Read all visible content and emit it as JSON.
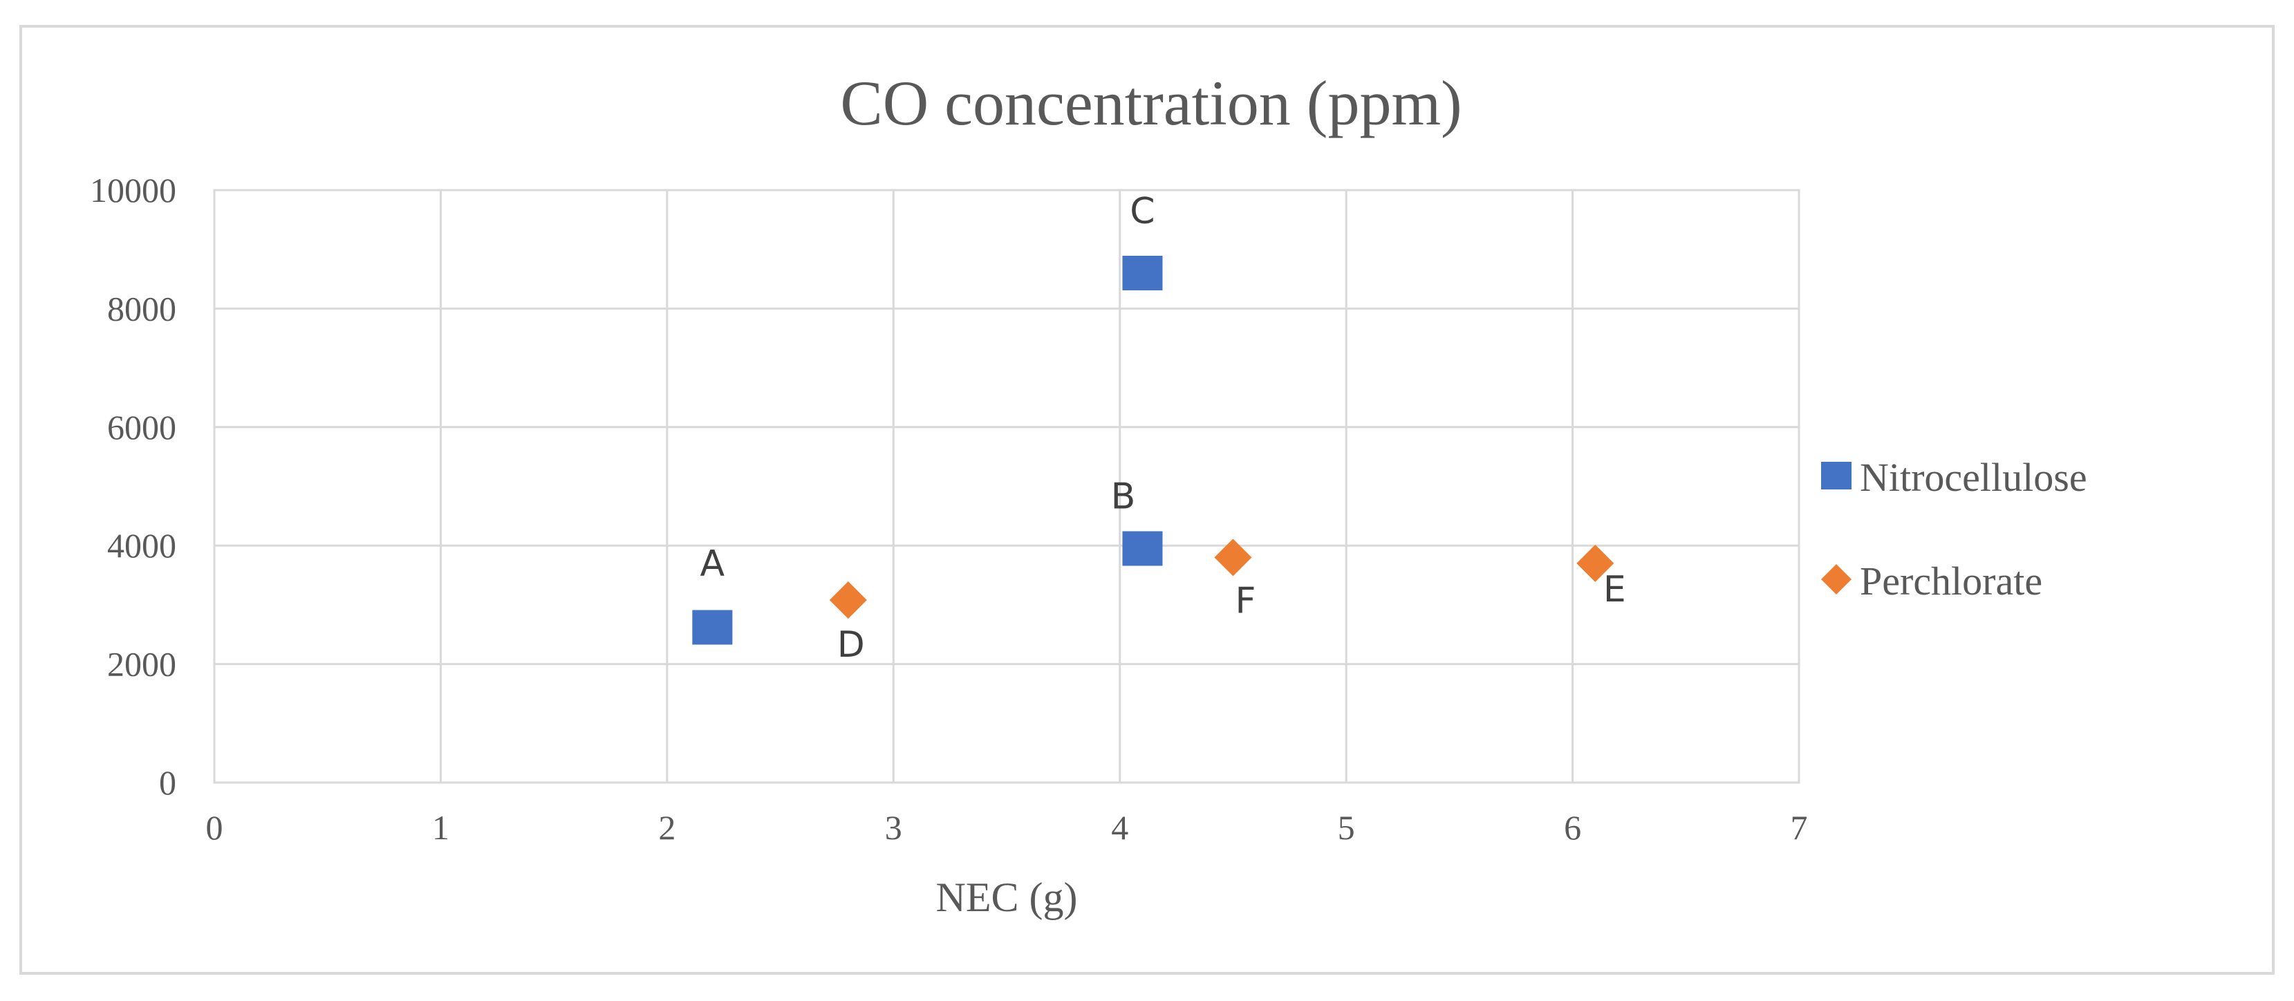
{
  "chart_data": {
    "type": "scatter",
    "title": "CO concentration (ppm)",
    "xlabel": "NEC (g)",
    "ylabel": "",
    "xlim": [
      0,
      7
    ],
    "ylim": [
      0,
      10000
    ],
    "x_ticks": [
      "0",
      "1",
      "2",
      "3",
      "4",
      "5",
      "6",
      "7"
    ],
    "y_ticks": [
      "0",
      "2000",
      "4000",
      "6000",
      "8000",
      "10000"
    ],
    "grid": true,
    "legend_position": "right",
    "series": [
      {
        "name": "Nitrocellulose",
        "marker": "square",
        "color": "#4472c4",
        "points": [
          {
            "label": "A",
            "x": 2.2,
            "y": 2620
          },
          {
            "label": "B",
            "x": 4.1,
            "y": 3950
          },
          {
            "label": "C",
            "x": 4.1,
            "y": 8600
          }
        ]
      },
      {
        "name": "Perchlorate",
        "marker": "diamond",
        "color": "#ed7d31",
        "points": [
          {
            "label": "D",
            "x": 2.8,
            "y": 3080
          },
          {
            "label": "F",
            "x": 4.5,
            "y": 3800
          },
          {
            "label": "E",
            "x": 6.1,
            "y": 3700
          }
        ]
      }
    ]
  }
}
